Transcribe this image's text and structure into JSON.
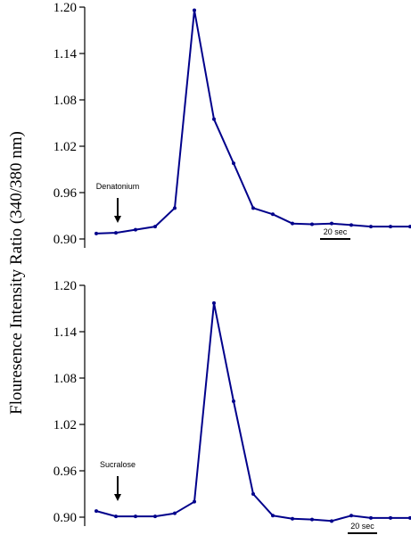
{
  "chart_data": [
    {
      "type": "line",
      "ylim": [
        0.9,
        1.2
      ],
      "yticks": [
        "0.90",
        "0.96",
        "1.02",
        "1.08",
        "1.14",
        "1.20"
      ],
      "x": [
        0,
        1,
        2,
        3,
        4,
        5,
        6,
        7,
        8,
        9,
        10,
        11,
        12,
        13,
        14,
        15,
        16
      ],
      "series": [
        {
          "values": [
            0.907,
            0.908,
            0.912,
            0.916,
            0.94,
            1.196,
            1.055,
            0.998,
            0.94,
            0.932,
            0.92,
            0.919,
            0.92,
            0.918,
            0.916,
            0.916,
            0.916
          ]
        }
      ],
      "annotation": {
        "text": "Denatonium",
        "x": 1,
        "arrow": true
      },
      "scale_bar": {
        "label": "20 sec"
      }
    },
    {
      "type": "line",
      "ylim": [
        0.9,
        1.2
      ],
      "yticks": [
        "0.90",
        "0.96",
        "1.02",
        "1.08",
        "1.14",
        "1.20"
      ],
      "x": [
        0,
        1,
        2,
        3,
        4,
        5,
        6,
        7,
        8,
        9,
        10,
        11,
        12,
        13,
        14,
        15,
        16
      ],
      "series": [
        {
          "values": [
            0.908,
            0.901,
            0.901,
            0.901,
            0.905,
            0.92,
            1.177,
            1.05,
            0.93,
            0.902,
            0.898,
            0.897,
            0.895,
            0.902,
            0.899,
            0.899,
            0.899
          ]
        }
      ],
      "annotation": {
        "text": "Sucralose",
        "x": 1,
        "arrow": true
      },
      "scale_bar": {
        "label": "20 sec"
      }
    }
  ],
  "ylabel": "Flouresence Intensity Ratio (340/380 nm)",
  "colors": {
    "line": "#00008b",
    "axis": "#000000"
  }
}
